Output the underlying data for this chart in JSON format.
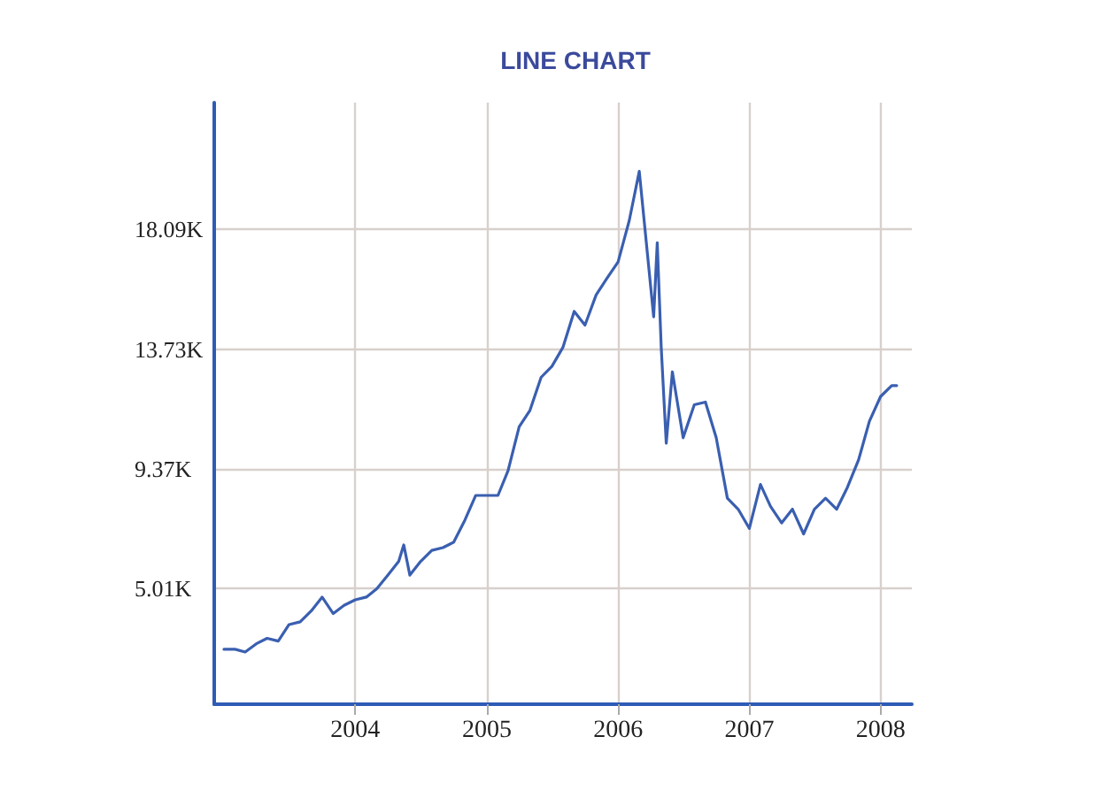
{
  "chart_data": {
    "type": "line",
    "title": "LINE CHART",
    "x": [
      "2003-01",
      "2003-02",
      "2003-03",
      "2003-04",
      "2003-05",
      "2003-06",
      "2003-07",
      "2003-08",
      "2003-09",
      "2003-10",
      "2003-11",
      "2003-12",
      "2004-01",
      "2004-02",
      "2004-03",
      "2004-04",
      "2004-05",
      "2004-05-15",
      "2004-06",
      "2004-07",
      "2004-08",
      "2004-09",
      "2004-10",
      "2004-11",
      "2004-12",
      "2005-01",
      "2005-02",
      "2005-03",
      "2005-04",
      "2005-05",
      "2005-06",
      "2005-07",
      "2005-08",
      "2005-09",
      "2005-10",
      "2005-11",
      "2005-12",
      "2006-01",
      "2006-02",
      "2006-03",
      "2006-04-10",
      "2006-04-20",
      "2006-05",
      "2006-05-15",
      "2006-06",
      "2006-07",
      "2006-08",
      "2006-09",
      "2006-10",
      "2006-11",
      "2006-12",
      "2007-01",
      "2007-02",
      "2007-03",
      "2007-04",
      "2007-05",
      "2007-06",
      "2007-07",
      "2007-08",
      "2007-09",
      "2007-10",
      "2007-11",
      "2007-12",
      "2008-01",
      "2008-02",
      "2008-02-15"
    ],
    "series": [
      {
        "color": "#3a5fb0",
        "values": [
          2.8,
          2.8,
          2.7,
          3.0,
          3.2,
          3.1,
          3.7,
          3.8,
          4.2,
          4.7,
          4.1,
          4.4,
          4.6,
          4.7,
          5.0,
          5.5,
          6.0,
          6.6,
          5.5,
          6.0,
          6.4,
          6.5,
          6.7,
          7.5,
          8.4,
          8.4,
          8.4,
          9.3,
          10.9,
          11.5,
          12.7,
          13.1,
          13.8,
          15.1,
          14.6,
          15.7,
          16.3,
          16.9,
          18.4,
          20.2,
          14.9,
          17.6,
          13.8,
          10.3,
          12.9,
          10.5,
          11.7,
          11.8,
          10.5,
          8.3,
          7.9,
          7.2,
          8.8,
          8.0,
          7.4,
          7.9,
          7.0,
          7.9,
          8.3,
          7.9,
          8.7,
          9.7,
          11.1,
          12.0,
          12.4,
          12.4
        ]
      }
    ],
    "xlim": [
      "2002-12-05",
      "2008-03-28"
    ],
    "xticks": [
      "2004",
      "2005",
      "2006",
      "2007",
      "2008"
    ],
    "ylim": [
      0.8,
      22.7
    ],
    "yticks": [
      {
        "value": 5.01,
        "label": "5.01K"
      },
      {
        "value": 9.37,
        "label": "9.37K"
      },
      {
        "value": 13.73,
        "label": "13.73K"
      },
      {
        "value": 18.09,
        "label": "18.09K"
      }
    ],
    "grid": true,
    "marker": "none",
    "line_style": "solid"
  }
}
